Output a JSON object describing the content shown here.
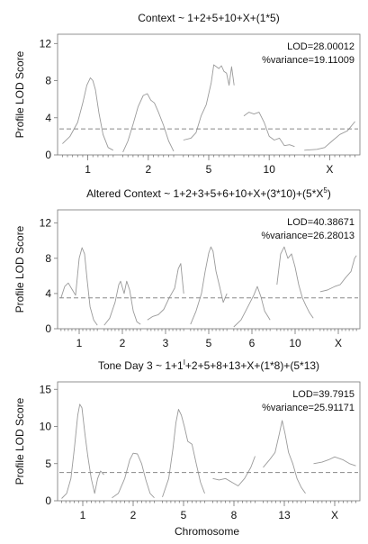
{
  "xlabel": "Chromosome",
  "chart_data": [
    {
      "type": "line",
      "title": "Context ~ 1+2+5+10+X+(1*5)",
      "ylabel": "Profile LOD Score",
      "ylim": [
        0,
        13
      ],
      "yticks": [
        0,
        4,
        8,
        12
      ],
      "threshold": 2.8,
      "annotations": [
        "LOD=28.00012",
        "%variance=19.11009"
      ],
      "chromosomes": [
        {
          "label": "1",
          "points": [
            [
              0,
              1.2
            ],
            [
              0.15,
              2.0
            ],
            [
              0.3,
              3.5
            ],
            [
              0.4,
              5.6
            ],
            [
              0.48,
              7.5
            ],
            [
              0.55,
              8.3
            ],
            [
              0.6,
              8.0
            ],
            [
              0.65,
              7.0
            ],
            [
              0.72,
              4.5
            ],
            [
              0.8,
              2.2
            ],
            [
              0.9,
              0.8
            ],
            [
              1,
              0.5
            ]
          ]
        },
        {
          "label": "2",
          "points": [
            [
              0,
              0.3
            ],
            [
              0.1,
              1.5
            ],
            [
              0.2,
              3.3
            ],
            [
              0.3,
              5.2
            ],
            [
              0.4,
              6.4
            ],
            [
              0.48,
              6.6
            ],
            [
              0.55,
              5.9
            ],
            [
              0.62,
              5.6
            ],
            [
              0.7,
              4.6
            ],
            [
              0.8,
              3.2
            ],
            [
              0.9,
              1.5
            ],
            [
              1,
              0.4
            ]
          ]
        },
        {
          "label": "5",
          "points": [
            [
              0,
              1.6
            ],
            [
              0.15,
              1.8
            ],
            [
              0.25,
              2.4
            ],
            [
              0.35,
              4.2
            ],
            [
              0.45,
              5.4
            ],
            [
              0.55,
              7.8
            ],
            [
              0.6,
              9.7
            ],
            [
              0.7,
              9.3
            ],
            [
              0.75,
              9.6
            ],
            [
              0.8,
              9.0
            ],
            [
              0.85,
              8.8
            ],
            [
              0.9,
              7.5
            ],
            [
              0.95,
              9.5
            ],
            [
              1,
              7.5
            ]
          ]
        },
        {
          "label": "10",
          "points": [
            [
              0,
              4.2
            ],
            [
              0.1,
              4.6
            ],
            [
              0.2,
              4.4
            ],
            [
              0.3,
              4.6
            ],
            [
              0.4,
              3.5
            ],
            [
              0.5,
              2.0
            ],
            [
              0.6,
              1.6
            ],
            [
              0.7,
              1.8
            ],
            [
              0.8,
              1.0
            ],
            [
              0.9,
              1.1
            ],
            [
              1,
              0.9
            ]
          ]
        },
        {
          "label": "X",
          "points": [
            [
              0,
              0.5
            ],
            [
              0.25,
              0.6
            ],
            [
              0.4,
              0.8
            ],
            [
              0.55,
              1.5
            ],
            [
              0.7,
              2.2
            ],
            [
              0.85,
              2.6
            ],
            [
              1,
              3.6
            ]
          ]
        }
      ]
    },
    {
      "type": "line",
      "title": "Altered Context ~ 1+2+3+5+6+10+X+(3*10)+(5*X",
      "title_sup": "5",
      "title_end": ")",
      "ylabel": "Profile LOD Score",
      "ylim": [
        0,
        13.5
      ],
      "yticks": [
        0,
        4,
        8,
        12
      ],
      "threshold": 3.5,
      "annotations": [
        "LOD=40.38671",
        "%variance=26.28013"
      ],
      "chromosomes": [
        {
          "label": "1",
          "points": [
            [
              0,
              3.5
            ],
            [
              0.1,
              4.8
            ],
            [
              0.2,
              5.2
            ],
            [
              0.3,
              4.5
            ],
            [
              0.4,
              3.8
            ],
            [
              0.5,
              8.0
            ],
            [
              0.58,
              9.2
            ],
            [
              0.65,
              8.5
            ],
            [
              0.72,
              5.5
            ],
            [
              0.8,
              2.5
            ],
            [
              0.9,
              1.0
            ],
            [
              1,
              0.4
            ]
          ]
        },
        {
          "label": "2",
          "points": [
            [
              0,
              0.4
            ],
            [
              0.15,
              1.2
            ],
            [
              0.3,
              3.0
            ],
            [
              0.4,
              5.0
            ],
            [
              0.45,
              5.4
            ],
            [
              0.55,
              4.0
            ],
            [
              0.62,
              5.4
            ],
            [
              0.7,
              4.4
            ],
            [
              0.8,
              2.0
            ],
            [
              0.9,
              0.8
            ],
            [
              1,
              0.5
            ]
          ]
        },
        {
          "label": "3",
          "points": [
            [
              0,
              1.0
            ],
            [
              0.15,
              1.4
            ],
            [
              0.3,
              1.6
            ],
            [
              0.45,
              2.2
            ],
            [
              0.6,
              3.5
            ],
            [
              0.75,
              4.6
            ],
            [
              0.85,
              6.8
            ],
            [
              0.92,
              7.4
            ],
            [
              1,
              4.0
            ]
          ]
        },
        {
          "label": "5",
          "points": [
            [
              0,
              0.5
            ],
            [
              0.15,
              2.0
            ],
            [
              0.3,
              4.0
            ],
            [
              0.4,
              6.5
            ],
            [
              0.5,
              8.6
            ],
            [
              0.56,
              9.3
            ],
            [
              0.62,
              8.8
            ],
            [
              0.7,
              6.5
            ],
            [
              0.8,
              4.8
            ],
            [
              0.9,
              3.0
            ],
            [
              1,
              4.0
            ]
          ]
        },
        {
          "label": "6",
          "points": [
            [
              0,
              0.2
            ],
            [
              0.2,
              1.0
            ],
            [
              0.4,
              2.6
            ],
            [
              0.55,
              3.8
            ],
            [
              0.65,
              4.8
            ],
            [
              0.75,
              3.6
            ],
            [
              0.85,
              2.0
            ],
            [
              1,
              1.0
            ]
          ]
        },
        {
          "label": "10",
          "points": [
            [
              0,
              5.0
            ],
            [
              0.1,
              8.5
            ],
            [
              0.2,
              9.3
            ],
            [
              0.3,
              8.0
            ],
            [
              0.4,
              8.5
            ],
            [
              0.5,
              7.0
            ],
            [
              0.6,
              5.0
            ],
            [
              0.7,
              3.5
            ],
            [
              0.8,
              2.6
            ],
            [
              0.9,
              1.8
            ],
            [
              1,
              1.2
            ]
          ]
        },
        {
          "label": "X",
          "points": [
            [
              0,
              4.2
            ],
            [
              0.2,
              4.4
            ],
            [
              0.4,
              4.8
            ],
            [
              0.55,
              5.0
            ],
            [
              0.7,
              5.8
            ],
            [
              0.85,
              6.5
            ],
            [
              0.95,
              8.0
            ],
            [
              1,
              8.3
            ]
          ]
        }
      ]
    },
    {
      "type": "line",
      "title": "Tone Day 3 ~ 1+1",
      "title_sup": "I",
      "title_end": "+2+5+8+13+X+(1*8)+(5*13)",
      "ylabel": "Profile LOD Score",
      "ylim": [
        0,
        16
      ],
      "yticks": [
        0,
        5,
        10,
        15
      ],
      "threshold": 3.8,
      "annotations": [
        "LOD=39.7915",
        "%variance=25.91171"
      ],
      "chromosomes": [
        {
          "label": "1",
          "points": [
            [
              0,
              0.3
            ],
            [
              0.12,
              1.0
            ],
            [
              0.22,
              3.0
            ],
            [
              0.3,
              7.0
            ],
            [
              0.38,
              11.5
            ],
            [
              0.43,
              13.0
            ],
            [
              0.48,
              12.5
            ],
            [
              0.55,
              9.0
            ],
            [
              0.62,
              6.0
            ],
            [
              0.7,
              3.0
            ],
            [
              0.78,
              1.0
            ],
            [
              0.85,
              3.0
            ],
            [
              0.92,
              4.0
            ],
            [
              1,
              3.5
            ]
          ]
        },
        {
          "label": "2",
          "points": [
            [
              0,
              0.4
            ],
            [
              0.15,
              1.0
            ],
            [
              0.3,
              3.0
            ],
            [
              0.42,
              5.5
            ],
            [
              0.5,
              6.4
            ],
            [
              0.6,
              6.3
            ],
            [
              0.7,
              5.0
            ],
            [
              0.8,
              2.8
            ],
            [
              0.9,
              1.0
            ],
            [
              1,
              0.4
            ]
          ]
        },
        {
          "label": "5",
          "points": [
            [
              0,
              0.5
            ],
            [
              0.15,
              3.0
            ],
            [
              0.25,
              7.0
            ],
            [
              0.32,
              10.5
            ],
            [
              0.38,
              12.3
            ],
            [
              0.45,
              11.5
            ],
            [
              0.52,
              10.0
            ],
            [
              0.6,
              8.0
            ],
            [
              0.7,
              7.6
            ],
            [
              0.8,
              5.0
            ],
            [
              0.9,
              2.5
            ],
            [
              1,
              1.0
            ]
          ]
        },
        {
          "label": "8",
          "points": [
            [
              0,
              3.0
            ],
            [
              0.15,
              2.8
            ],
            [
              0.3,
              3.0
            ],
            [
              0.45,
              2.5
            ],
            [
              0.6,
              2.0
            ],
            [
              0.75,
              3.0
            ],
            [
              0.9,
              4.5
            ],
            [
              1,
              6.0
            ]
          ]
        },
        {
          "label": "13",
          "points": [
            [
              0,
              4.5
            ],
            [
              0.15,
              5.5
            ],
            [
              0.28,
              6.5
            ],
            [
              0.38,
              9.0
            ],
            [
              0.45,
              10.8
            ],
            [
              0.52,
              9.0
            ],
            [
              0.6,
              6.5
            ],
            [
              0.7,
              5.0
            ],
            [
              0.8,
              3.0
            ],
            [
              0.9,
              1.8
            ],
            [
              1,
              1.0
            ]
          ]
        },
        {
          "label": "X",
          "points": [
            [
              0,
              5.0
            ],
            [
              0.2,
              5.2
            ],
            [
              0.35,
              5.5
            ],
            [
              0.5,
              5.9
            ],
            [
              0.7,
              5.5
            ],
            [
              0.85,
              5.0
            ],
            [
              1,
              4.7
            ]
          ]
        }
      ]
    }
  ]
}
